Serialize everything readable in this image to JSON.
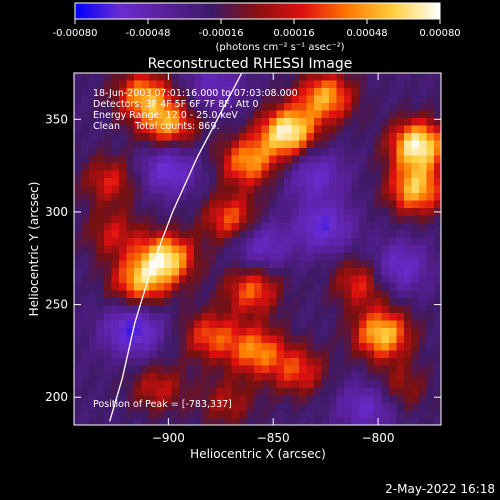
{
  "colorbar": {
    "ticks": [
      "-0.00080",
      "-0.00048",
      "-0.00016",
      "0.00016",
      "0.00048",
      "0.00080"
    ],
    "unit_label": "(photons cm⁻² s⁻¹ asec⁻²)",
    "range": [
      -0.0008,
      0.0008
    ]
  },
  "chart_data": {
    "type": "heatmap",
    "title": "Reconstructed RHESSI Image",
    "xlabel": "Heliocentric X (arcsec)",
    "ylabel": "Heliocentric Y (arcsec)",
    "xlim": [
      -945,
      -770
    ],
    "ylim": [
      185,
      375
    ],
    "x_ticks": [
      -900,
      -850,
      -800
    ],
    "y_ticks": [
      200,
      250,
      300,
      350
    ],
    "x_tick_labels": [
      "−900",
      "−850",
      "−800"
    ],
    "y_tick_labels": [
      "200",
      "250",
      "300",
      "350"
    ],
    "annotations": [
      "18-Jun-2003 07:01:16.000 to 07:03:08.000",
      "Detectors: 3F 4F 5F 6F 7F 8F, Att 0",
      "Energy Range: 12.0 - 25.0 keV",
      "Clean     Total counts: 869."
    ],
    "peak_label": "Position of Peak = [-783,337]",
    "peak_position": [
      -783,
      337
    ],
    "colormap": [
      "#0000ff",
      "#6a2bd0",
      "#5a1f9a",
      "#3a1a66",
      "#8a1010",
      "#e01010",
      "#ff7a00",
      "#ffd040",
      "#ffffff"
    ],
    "blobs": [
      {
        "x": -843,
        "y": 343,
        "v": 1.0
      },
      {
        "x": -825,
        "y": 362,
        "v": 0.75
      },
      {
        "x": -781,
        "y": 336,
        "v": 1.0
      },
      {
        "x": -782,
        "y": 312,
        "v": 0.8
      },
      {
        "x": -900,
        "y": 347,
        "v": 0.7
      },
      {
        "x": -912,
        "y": 363,
        "v": 0.7
      },
      {
        "x": -862,
        "y": 327,
        "v": 0.7
      },
      {
        "x": -870,
        "y": 296,
        "v": 0.6
      },
      {
        "x": -901,
        "y": 275,
        "v": 0.9
      },
      {
        "x": -914,
        "y": 262,
        "v": 0.7
      },
      {
        "x": -860,
        "y": 258,
        "v": 0.6
      },
      {
        "x": -798,
        "y": 234,
        "v": 0.85
      },
      {
        "x": -808,
        "y": 262,
        "v": 0.5
      },
      {
        "x": -858,
        "y": 225,
        "v": 0.65
      },
      {
        "x": -880,
        "y": 233,
        "v": 0.55
      },
      {
        "x": -838,
        "y": 214,
        "v": 0.5
      },
      {
        "x": -928,
        "y": 317,
        "v": 0.45
      },
      {
        "x": -926,
        "y": 288,
        "v": 0.4
      },
      {
        "x": -790,
        "y": 205,
        "v": 0.35
      },
      {
        "x": -872,
        "y": 197,
        "v": 0.35
      },
      {
        "x": -905,
        "y": 205,
        "v": 0.4
      },
      {
        "x": -900,
        "y": 323,
        "v": -0.6
      },
      {
        "x": -826,
        "y": 292,
        "v": -0.6
      },
      {
        "x": -856,
        "y": 282,
        "v": -0.5
      },
      {
        "x": -917,
        "y": 236,
        "v": -0.7
      },
      {
        "x": -790,
        "y": 270,
        "v": -0.55
      },
      {
        "x": -830,
        "y": 320,
        "v": -0.5
      },
      {
        "x": -878,
        "y": 368,
        "v": -0.4
      },
      {
        "x": -805,
        "y": 195,
        "v": -0.5
      }
    ],
    "limb": [
      {
        "x": -928,
        "y": 187
      },
      {
        "x": -922,
        "y": 210
      },
      {
        "x": -916,
        "y": 240
      },
      {
        "x": -908,
        "y": 270
      },
      {
        "x": -898,
        "y": 300
      },
      {
        "x": -886,
        "y": 330
      },
      {
        "x": -872,
        "y": 360
      },
      {
        "x": -865,
        "y": 375
      }
    ]
  },
  "footer": {
    "date": "2-May-2022 16:18"
  }
}
